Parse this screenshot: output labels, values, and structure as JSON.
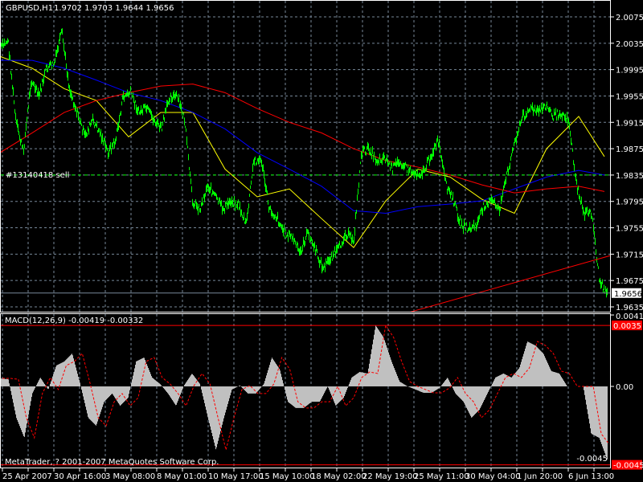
{
  "header": {
    "symbol": "GBPUSD,H1",
    "ohlc": "1.9702 1.9703 1.9644 1.9656"
  },
  "order_label": "#13140418 sell",
  "copyright": "MetaTrader, ? 2001-2007 MetaQuotes Software Corp.",
  "colors": {
    "background": "#000000",
    "grid": "#778899",
    "price": "#00ff00",
    "ma_fast": "#ffff00",
    "ma_mid": "#0000ff",
    "ma_slow": "#ff0000",
    "macd_hist": "#c0c0c0",
    "macd_signal": "#ff0000",
    "bid_line": "#778899",
    "order_line": "#00ff00"
  },
  "chart_data": [
    {
      "type": "line",
      "title": "GBPUSD,H1",
      "price_ticks": [
        "2.0075",
        "2.0035",
        "1.9995",
        "1.9955",
        "1.9915",
        "1.9875",
        "1.9835",
        "1.9795",
        "1.9755",
        "1.9715",
        "1.9675",
        "1.9635"
      ],
      "current_price": "1.9656",
      "ylim": [
        1.9635,
        2.0075
      ],
      "time_ticks": [
        "25 Apr 2007",
        "30 Apr 16:00",
        "3 May 08:00",
        "8 May 01:00",
        "10 May 17:00",
        "15 May 10:00",
        "18 May 02:00",
        "22 May 19:00",
        "25 May 11:00",
        "30 May 04:00",
        "1 Jun 20:00",
        "6 Jun 13:00"
      ],
      "grid": true,
      "order_line_price": 1.9835,
      "trendline": {
        "from_price": 1.9627,
        "to_price": 1.9713
      },
      "close": [
        2.0027,
        2.004,
        1.9918,
        1.9869,
        1.9979,
        1.9954,
        1.9997,
        2.0003,
        2.0052,
        1.9966,
        1.993,
        1.9893,
        1.9918,
        1.9899,
        1.9869,
        1.9887,
        1.9954,
        1.996,
        1.993,
        1.9936,
        1.9918,
        1.9905,
        1.9954,
        1.9954,
        1.9918,
        1.9796,
        1.9783,
        1.982,
        1.9802,
        1.9783,
        1.9796,
        1.979,
        1.9759,
        1.9857,
        1.9857,
        1.9783,
        1.9771,
        1.9747,
        1.9741,
        1.9716,
        1.9747,
        1.9722,
        1.9692,
        1.971,
        1.9722,
        1.9747,
        1.9735,
        1.9869,
        1.9875,
        1.9857,
        1.9863,
        1.9844,
        1.9857,
        1.9844,
        1.9838,
        1.9838,
        1.9863,
        1.9887,
        1.982,
        1.9796,
        1.9759,
        1.9753,
        1.9759,
        1.979,
        1.9796,
        1.9783,
        1.9838,
        1.9887,
        1.9924,
        1.9936,
        1.993,
        1.9942,
        1.9924,
        1.993,
        1.9918,
        1.982,
        1.9777,
        1.9777,
        1.9674,
        1.9656
      ],
      "series": [
        {
          "values": [
            2.0015,
            1.9997,
            1.9966,
            1.9948,
            1.9893,
            1.993,
            1.993,
            1.9844,
            1.9802,
            1.9814,
            1.9769,
            1.9725,
            1.9796,
            1.9844,
            1.9832,
            1.9798,
            1.9777,
            1.9875,
            1.9924,
            1.9863
          ]
        },
        {
          "values": [
            2.0009,
            2.0009,
            1.9997,
            1.9979,
            1.996,
            1.9948,
            1.993,
            1.9905,
            1.9869,
            1.9844,
            1.9818,
            1.9781,
            1.9777,
            1.9787,
            1.9791,
            1.9796,
            1.9814,
            1.9832,
            1.9842,
            1.9835
          ]
        },
        {
          "values": [
            1.9869,
            1.9899,
            1.993,
            1.9948,
            1.996,
            1.997,
            1.9973,
            1.996,
            1.9936,
            1.9915,
            1.9899,
            1.9875,
            1.9857,
            1.9847,
            1.9835,
            1.982,
            1.9808,
            1.9814,
            1.9818,
            1.981
          ]
        }
      ]
    },
    {
      "type": "bar",
      "title": "MACD(12,26,9) -0.00419 -0.00332",
      "ticks": [
        "0.0041",
        "0.00",
        "-0.0045"
      ],
      "level_labels": [
        "0.0035",
        "-0.0045"
      ],
      "ylim": [
        -0.0045,
        0.0041
      ],
      "macd": [
        0.00046,
        0.00041,
        -0.0018,
        -0.00295,
        -0.00041,
        0.00051,
        -0.00018,
        0.0012,
        0.00143,
        0.00189,
        0.00014,
        -0.0018,
        -0.00226,
        -0.00088,
        -0.00041,
        -0.00111,
        -0.00065,
        0.00143,
        0.00166,
        0.00051,
        0.00014,
        -0.00041,
        -0.00111,
        5e-05,
        0.00074,
        0.00014,
        -0.0018,
        -0.00364,
        -0.0018,
        -0.00018,
        5e-05,
        -0.00041,
        -0.00041,
        0.00014,
        0.00166,
        0.00097,
        -0.00088,
        -0.00124,
        -0.00124,
        -0.00088,
        -0.00088,
        0.0,
        -0.00111,
        -0.00065,
        0.00051,
        0.00083,
        0.00074,
        0.0035,
        0.00281,
        0.00143,
        0.00028,
        0.0,
        -0.00018,
        -0.00037,
        -0.00037,
        -9e-05,
        0.00051,
        -0.00041,
        -0.00088,
        -0.0018,
        -0.00134,
        -0.00041,
        0.00051,
        0.00074,
        0.00051,
        0.00106,
        0.00258,
        0.00235,
        0.00189,
        0.00088,
        0.00074,
        0.0,
        0.0,
        0.0,
        -0.00272,
        -0.00295,
        -0.00419
      ],
      "signal": [
        0.00046,
        0.00046,
        0.00041,
        -0.0018,
        -0.00295,
        -0.00041,
        0.00051,
        -0.00018,
        0.0012,
        0.00143,
        0.00189,
        0.00014,
        -0.0018,
        -0.00226,
        -0.00088,
        -0.00041,
        -0.00111,
        -0.00065,
        0.00143,
        0.00166,
        0.00051,
        0.00014,
        -0.00041,
        -0.00111,
        5e-05,
        0.00074,
        0.00014,
        -0.0018,
        -0.00364,
        -0.0018,
        -0.00018,
        5e-05,
        -0.00041,
        -0.00041,
        0.00014,
        0.00166,
        0.00097,
        -0.00088,
        -0.00124,
        -0.00124,
        -0.00088,
        -0.00088,
        0.0,
        -0.00111,
        -0.00065,
        0.00051,
        0.00083,
        0.00074,
        0.0035,
        0.00281,
        0.00143,
        0.00028,
        0.0,
        -0.00018,
        -0.00037,
        -0.00037,
        -9e-05,
        0.00051,
        -0.00041,
        -0.00088,
        -0.0018,
        -0.00134,
        -0.00041,
        0.00051,
        0.00074,
        0.00051,
        0.00106,
        0.00258,
        0.00235,
        0.00189,
        0.00088,
        0.00074,
        0.0,
        0.0,
        0.0,
        -0.00272,
        -0.00332
      ]
    }
  ]
}
